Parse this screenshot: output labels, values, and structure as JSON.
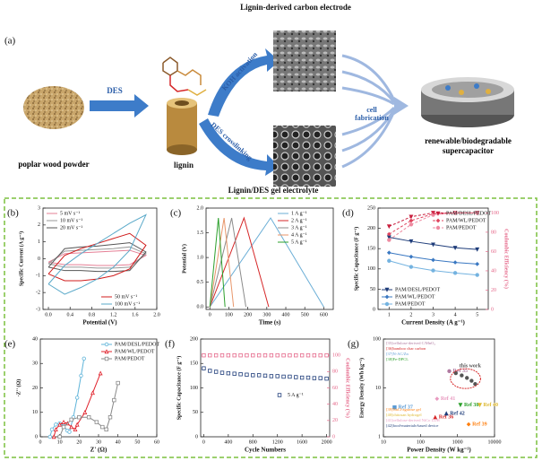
{
  "figure": {
    "title_top": "Lignin-derived carbon electrode",
    "panel_a": "(a)",
    "wood": "poplar wood powder",
    "des": "DES",
    "lignin": "lignin",
    "koh": "KOH activation",
    "crosslink": "DES crosslinking",
    "fabrication": "cell fabrication",
    "device": "renewable/biodegradable supercapacitor",
    "title_bottom": "Lignin/DES gel electrolyte"
  },
  "chart_data": [
    {
      "label": "(b)",
      "type": "line",
      "xlabel": "Potential (V)",
      "ylabel": "Specific Current (A g⁻¹)",
      "xlim": [
        -0.1,
        2.0
      ],
      "xticks": [
        {
          "value": 0,
          "label": "0.0"
        },
        {
          "value": 0.4,
          "label": "0.4"
        },
        {
          "value": 0.8,
          "label": "0.8"
        },
        {
          "value": 1.2,
          "label": "1.2"
        },
        {
          "value": 1.6,
          "label": "1.6"
        },
        {
          "value": 2.0,
          "label": "2.0"
        }
      ],
      "ylim": [
        -3,
        3
      ],
      "yticks": [
        -3,
        -2,
        -1,
        0,
        1,
        2,
        3
      ],
      "legend": "upper-left",
      "x": [
        0,
        0.3,
        0.6,
        0.9,
        1.2,
        1.5,
        1.8,
        1.5,
        1.2,
        0.9,
        0.6,
        0.3,
        0
      ],
      "series": [
        {
          "name": "5 mV s⁻¹",
          "color": "#e57f95",
          "values": [
            -0.2,
            0.3,
            0.35,
            0.4,
            0.45,
            0.5,
            0.2,
            -0.35,
            -0.4,
            -0.4,
            -0.35,
            -0.35,
            -0.2
          ]
        },
        {
          "name": "10 mV s⁻¹",
          "color": "#999999",
          "values": [
            -0.3,
            0.45,
            0.5,
            0.55,
            0.6,
            0.7,
            0.3,
            -0.5,
            -0.55,
            -0.55,
            -0.5,
            -0.5,
            -0.3
          ]
        },
        {
          "name": "20 mV s⁻¹",
          "color": "#555555",
          "values": [
            -0.5,
            0.6,
            0.7,
            0.75,
            0.85,
            0.95,
            0.4,
            -0.7,
            -0.75,
            -0.75,
            -0.7,
            -0.7,
            -0.5
          ]
        },
        {
          "name": "50 mV s⁻¹",
          "color": "#d01c1c",
          "legend": "lower-right",
          "values": [
            -0.9,
            0.2,
            0.6,
            0.9,
            1.2,
            1.5,
            0.8,
            -0.6,
            -1.0,
            -1.2,
            -1.3,
            -1.3,
            -0.9
          ]
        },
        {
          "name": "100 mV s⁻¹",
          "color": "#5aa9c9",
          "legend": "lower-right",
          "values": [
            -1.5,
            -0.4,
            0.3,
            0.9,
            1.5,
            2.1,
            2.6,
            0.5,
            -0.5,
            -1.2,
            -1.7,
            -2.1,
            -1.5
          ]
        }
      ]
    },
    {
      "label": "(c)",
      "type": "line",
      "xlabel": "Time (s)",
      "ylabel": "Potential (V)",
      "xlim": [
        -20,
        650
      ],
      "xticks": [
        0,
        100,
        200,
        300,
        400,
        500,
        600
      ],
      "ylim": [
        -0.05,
        2.0
      ],
      "yticks": [
        {
          "value": 0,
          "label": "0.0"
        },
        {
          "value": 0.5,
          "label": "0.5"
        },
        {
          "value": 1.0,
          "label": "1.0"
        },
        {
          "value": 1.5,
          "label": "1.5"
        },
        {
          "value": 2.0,
          "label": "2.0"
        }
      ],
      "legend": "upper-right",
      "series": [
        {
          "name": "1 A g⁻¹",
          "color": "#6baed6",
          "x": [
            0,
            320,
            600
          ],
          "values": [
            0,
            1.8,
            0
          ]
        },
        {
          "name": "2 A g⁻¹",
          "color": "#d62728",
          "x": [
            0,
            180,
            310
          ],
          "values": [
            0,
            1.8,
            0
          ]
        },
        {
          "name": "3 A g⁻¹",
          "color": "#8c8c8c",
          "x": [
            0,
            115,
            190
          ],
          "values": [
            0,
            1.8,
            0
          ]
        },
        {
          "name": "4 A g⁻¹",
          "color": "#e8966a",
          "x": [
            0,
            75,
            125
          ],
          "values": [
            0,
            1.8,
            0
          ]
        },
        {
          "name": "5 A g⁻¹",
          "color": "#2ca02c",
          "x": [
            0,
            45,
            80
          ],
          "values": [
            0,
            1.8,
            0
          ]
        }
      ]
    },
    {
      "label": "(d)",
      "type": "line",
      "xlabel": "Current Density (A g⁻¹)",
      "ylabel": "Specific Capacitance (F g⁻¹)",
      "y2label": "Coulombic Efficiency (%)",
      "x": [
        1,
        2,
        3,
        4,
        5
      ],
      "xlim": [
        0.5,
        5.5
      ],
      "xticks": [
        1,
        2,
        3,
        4,
        5
      ],
      "ylim": [
        0,
        250
      ],
      "yticks": [
        0,
        50,
        100,
        150,
        200,
        250
      ],
      "y2lim": [
        0,
        105
      ],
      "y2ticks": [
        0,
        20,
        40,
        60,
        80,
        100
      ],
      "y2color": "#e5688a",
      "legend": "lower-left",
      "series": [
        {
          "name": "PAM/DESL/PEDOT",
          "color": "#1f3d7a",
          "marker": "triangle-down",
          "filled": true,
          "values": [
            178,
            168,
            160,
            152,
            148
          ]
        },
        {
          "name": "PAM/WL/PEDOT",
          "color": "#3a78c2",
          "marker": "diamond",
          "filled": true,
          "values": [
            140,
            130,
            122,
            116,
            112
          ]
        },
        {
          "name": "PAM/PEDOT",
          "color": "#74b3e0",
          "marker": "circle",
          "filled": true,
          "values": [
            120,
            105,
            96,
            90,
            85
          ]
        },
        {
          "name": "PAM/DESL/PEDOT",
          "color": "#c81d3c",
          "axis": "y2",
          "dashed": true,
          "legend": "upper-right",
          "marker": "triangle-down",
          "filled": true,
          "values": [
            86,
            96,
            100,
            100,
            100
          ]
        },
        {
          "name": "PAM/WL/PEDOT",
          "color": "#e0445e",
          "axis": "y2",
          "dashed": true,
          "legend": "upper-right",
          "marker": "diamond",
          "filled": true,
          "values": [
            78,
            92,
            99,
            100,
            100
          ]
        },
        {
          "name": "PAM/PEDOT",
          "color": "#ee8aa0",
          "axis": "y2",
          "dashed": true,
          "legend": "upper-right",
          "marker": "circle",
          "filled": true,
          "values": [
            72,
            88,
            98,
            100,
            100
          ]
        }
      ]
    },
    {
      "label": "(e)",
      "type": "scatter",
      "xlabel": "Z' (Ω)",
      "ylabel": "-Z'' (Ω)",
      "xlim": [
        0,
        60
      ],
      "xticks": [
        0,
        10,
        20,
        30,
        40,
        50,
        60
      ],
      "ylim": [
        0,
        40
      ],
      "yticks": [
        0,
        10,
        20,
        30,
        40
      ],
      "legend": "upper-right",
      "series": [
        {
          "name": "PAM/DESL/PEDOT",
          "color": "#5fb4d9",
          "marker": "circle",
          "line": true,
          "x": [
            5,
            6,
            8,
            10,
            12,
            14,
            15,
            17,
            19,
            21,
            22.5
          ],
          "values": [
            0,
            3,
            5,
            5.5,
            4.5,
            2.5,
            2,
            8,
            16,
            25,
            32
          ]
        },
        {
          "name": "PAM/WL/PEDOT",
          "color": "#e0202a",
          "marker": "triangle",
          "line": true,
          "x": [
            7,
            8,
            10,
            12,
            14,
            16,
            18,
            19,
            23,
            27,
            31
          ],
          "values": [
            0,
            3,
            5,
            6,
            5.5,
            4,
            3,
            5,
            10,
            18,
            26
          ]
        },
        {
          "name": "PAM/PEDOT",
          "color": "#888888",
          "marker": "square",
          "line": true,
          "x": [
            10,
            12,
            16,
            20,
            25,
            29,
            32,
            34,
            36,
            38,
            40
          ],
          "values": [
            0,
            4,
            7,
            8,
            8,
            6,
            4,
            3,
            8,
            15,
            22
          ]
        }
      ]
    },
    {
      "label": "(f)",
      "type": "scatter",
      "xlabel": "Cycle Numbers",
      "ylabel": "Specific Capacitance (F g⁻¹)",
      "y2label": "Coulombic Efficiency (%)",
      "xlim": [
        -50,
        2050
      ],
      "xticks": [
        0,
        400,
        800,
        1200,
        1600,
        2000
      ],
      "ylim": [
        0,
        200
      ],
      "yticks": [
        0,
        50,
        100,
        150,
        200
      ],
      "y2lim": [
        0,
        120
      ],
      "y2ticks": [
        0,
        20,
        40,
        60,
        80,
        100
      ],
      "y2color": "#e5688a",
      "legend": "center-right",
      "x": [
        0,
        100,
        200,
        300,
        400,
        500,
        600,
        700,
        800,
        900,
        1000,
        1100,
        1200,
        1300,
        1400,
        1500,
        1600,
        1700,
        1800,
        1900,
        2000
      ],
      "series": [
        {
          "name": "5 A g⁻¹",
          "color": "#1f3d7a",
          "marker": "square",
          "values": [
            140,
            135,
            133,
            131,
            130,
            129,
            128,
            127,
            126,
            126,
            125,
            124,
            124,
            123,
            123,
            122,
            121,
            121,
            120,
            120,
            119
          ]
        },
        {
          "color": "#e5688a",
          "axis": "y2",
          "marker": "square",
          "values": [
            100,
            100,
            100,
            100,
            100,
            100,
            100,
            100,
            100,
            100,
            100,
            100,
            100,
            100,
            100,
            100,
            100,
            100,
            100,
            100,
            100
          ]
        }
      ]
    },
    {
      "label": "(g)",
      "type": "scatter",
      "xlabel": "Power Density (W kg⁻¹)",
      "ylabel": "Energy Density (Wh kg⁻¹)",
      "xscale": "log",
      "yscale": "log",
      "xlim": [
        10,
        10000
      ],
      "xticks": [
        10,
        100,
        1000,
        10000
      ],
      "ylim": [
        1,
        100
      ],
      "yticks": [
        1,
        10,
        100
      ],
      "point_labels": true,
      "series": [
        {
          "name": "Ref 37",
          "color": "#5b9bd5",
          "marker": "square",
          "filled": true,
          "x": [
            20
          ],
          "values": [
            4
          ]
        },
        {
          "name": "Ref 41",
          "color": "#e89ac0",
          "marker": "diamond",
          "filled": true,
          "x": [
            280
          ],
          "values": [
            6
          ]
        },
        {
          "name": "Ref 35",
          "color": "#b07aa1",
          "marker": "circle",
          "filled": true,
          "x": [
            600
          ],
          "values": [
            22
          ]
        },
        {
          "name": "Ref 36",
          "color": "#d62728",
          "marker": "triangle",
          "filled": true,
          "x": [
            250
          ],
          "values": [
            2.5
          ]
        },
        {
          "name": "Ref 42",
          "color": "#1f3d7a",
          "marker": "triangle",
          "filled": true,
          "x": [
            500
          ],
          "values": [
            3
          ]
        },
        {
          "name": "Ref 38",
          "color": "#2ca02c",
          "marker": "triangle-down",
          "filled": true,
          "x": [
            1200
          ],
          "values": [
            4.5
          ]
        },
        {
          "name": "Ref 39",
          "color": "#ff7f0e",
          "marker": "diamond",
          "filled": true,
          "x": [
            2000
          ],
          "values": [
            1.8
          ]
        },
        {
          "name": "Ref 40",
          "color": "#ddb830",
          "marker": "triangle-down",
          "filled": true,
          "x": [
            4000
          ],
          "values": [
            4.5
          ]
        },
        {
          "name": "this work",
          "color": "#555555",
          "marker": "circle",
          "filled": true,
          "x": [
            900,
            1300,
            1800,
            2400,
            3000
          ],
          "values": [
            20,
            18,
            16,
            14,
            12
          ]
        }
      ],
      "notes": [
        {
          "text": "[35]cellulose-derived C/MnO₂",
          "color": "#b07aa1"
        },
        {
          "text": "[36]bamboo char carbon",
          "color": "#d62728"
        },
        {
          "text": "[37]N-AC/Zn",
          "color": "#5b9bd5"
        },
        {
          "text": "[38]Fe-DPCL",
          "color": "#2ca02c"
        },
        {
          "text": "[39]NaCl-agarose gel",
          "color": "#ff7f0e"
        },
        {
          "text": "[40]chitosan hydrogel",
          "color": "#ddb830"
        },
        {
          "text": "[41]cellulose-derived NiCo LDH",
          "color": "#e89ac0"
        },
        {
          "text": "[42]food-materials-based device",
          "color": "#1f3d7a"
        }
      ]
    }
  ]
}
